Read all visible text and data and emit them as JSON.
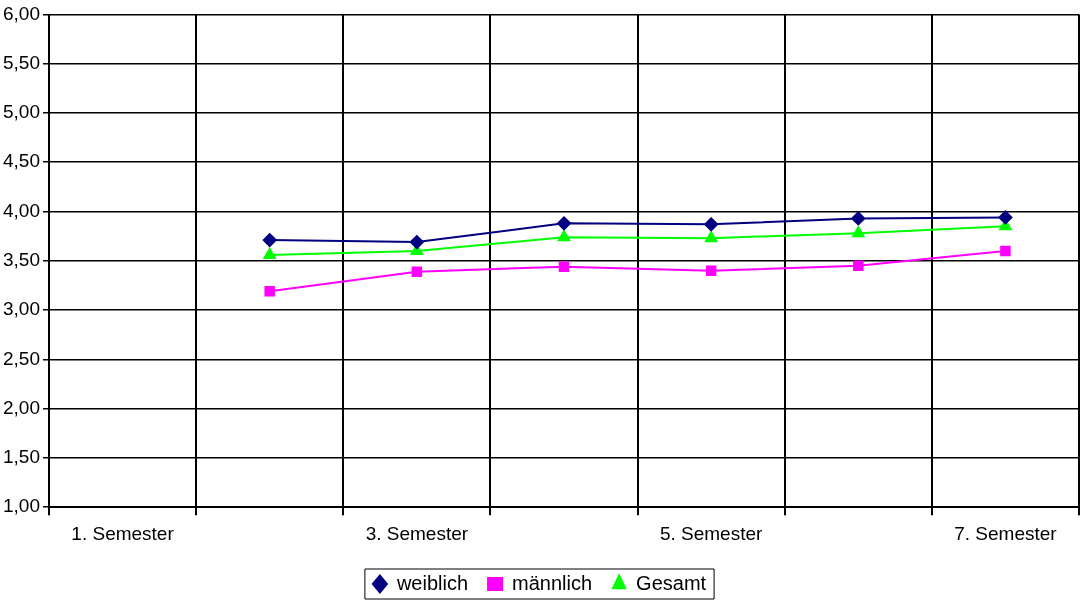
{
  "chart_data": {
    "type": "line",
    "categories": [
      "1. Semester",
      null,
      "3. Semester",
      null,
      "5. Semester",
      null,
      "7. Semester"
    ],
    "series": [
      {
        "name": "weiblich",
        "color": "#000080",
        "marker": "diamond",
        "values": [
          null,
          3.71,
          3.69,
          3.88,
          3.87,
          3.93,
          3.94
        ]
      },
      {
        "name": "männlich",
        "color": "#ff00ff",
        "marker": "square",
        "values": [
          null,
          3.19,
          3.39,
          3.44,
          3.4,
          3.45,
          3.6
        ]
      },
      {
        "name": "Gesamt",
        "color": "#00ff00",
        "marker": "triangle",
        "values": [
          null,
          3.56,
          3.6,
          3.74,
          3.73,
          3.78,
          3.85
        ]
      }
    ],
    "ylim": [
      1,
      6
    ],
    "yticks": [
      {
        "value": 1,
        "label": "1,00"
      },
      {
        "value": 1.5,
        "label": "1,50"
      },
      {
        "value": 2,
        "label": "2,00"
      },
      {
        "value": 2.5,
        "label": "2,50"
      },
      {
        "value": 3,
        "label": "3,00"
      },
      {
        "value": 3.5,
        "label": "3,50"
      },
      {
        "value": 4,
        "label": "4,00"
      },
      {
        "value": 4.5,
        "label": "4,50"
      },
      {
        "value": 5,
        "label": "5,00"
      },
      {
        "value": 5.5,
        "label": "5,50"
      },
      {
        "value": 6,
        "label": "6,00"
      }
    ],
    "grid": true,
    "legend": "bottom",
    "line_style": "solid"
  }
}
